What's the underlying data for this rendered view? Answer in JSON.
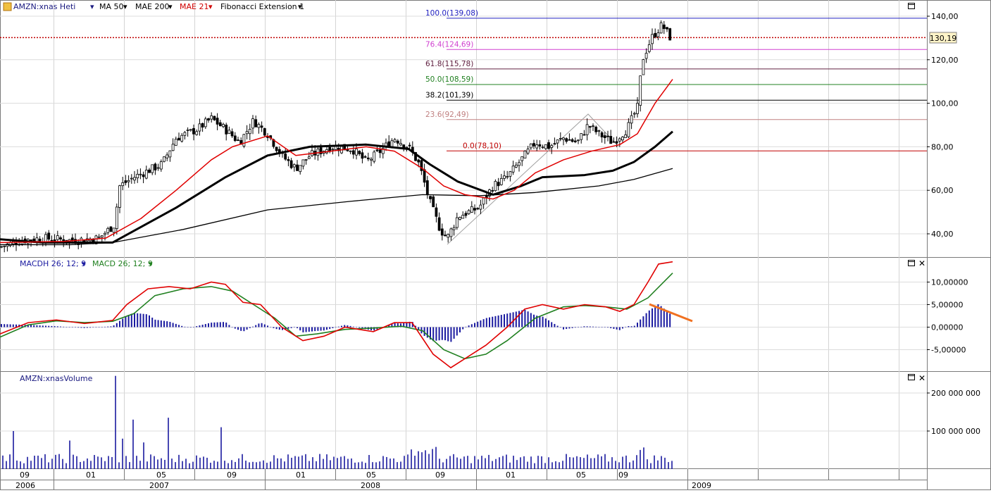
{
  "toolbar": {
    "instrument": "AMZN:xnas Heti",
    "indicators": [
      {
        "label": "MA 50",
        "color": "#000000"
      },
      {
        "label": "MAE 200",
        "color": "#000000"
      },
      {
        "label": "MAE 21",
        "color": "#e00000"
      },
      {
        "label": "Fibonacci Extension 1",
        "color": "#000000"
      }
    ]
  },
  "price_panel": {
    "y_ticks": [
      "140,00",
      "120,00",
      "100,00",
      "80,00",
      "60,00",
      "40,00"
    ],
    "last_price_label": "130,19",
    "last_price": 130.19,
    "fibonacci": [
      {
        "label": "100.0(139,08)",
        "value": 139.08,
        "color": "#2020c0"
      },
      {
        "label": "76.4(124,69)",
        "value": 124.69,
        "color": "#d040d0"
      },
      {
        "label": "61.8(115,78)",
        "value": 115.78,
        "color": "#602040"
      },
      {
        "label": "50.0(108,59)",
        "value": 108.59,
        "color": "#208020"
      },
      {
        "label": "38.2(101,39)",
        "value": 101.39,
        "color": "#000000"
      },
      {
        "label": "23.6(92,49)",
        "value": 92.49,
        "color": "#c08080"
      },
      {
        "label": "0.0(78,10)",
        "value": 78.1,
        "color": "#c00000"
      }
    ]
  },
  "macd_panel": {
    "legend": [
      {
        "label": "MACDH 26; 12; 9",
        "color": "#1a1aa0"
      },
      {
        "label": "MACD 26; 12; 9",
        "color": "#208020"
      }
    ],
    "y_ticks": [
      "10,00000",
      "5,00000",
      "0,00000",
      "-5,00000"
    ]
  },
  "volume_panel": {
    "label": "AMZN:xnasVolume",
    "y_ticks": [
      "200 000 000",
      "100 000 000"
    ]
  },
  "time_axis": {
    "months": [
      "09",
      "01",
      "05",
      "09",
      "01",
      "05",
      "09",
      "01",
      "05",
      "09"
    ],
    "years": [
      "2006",
      "2007",
      "2008",
      "2009"
    ]
  },
  "chart_data": {
    "type": "candlestick",
    "ticker": "AMZN",
    "price_ylim": [
      32,
      146
    ],
    "moving_averages": [
      {
        "name": "MA 50",
        "color": "#000000",
        "points": [
          [
            0,
            37.5
          ],
          [
            60,
            36
          ],
          [
            160,
            36
          ],
          [
            250,
            52
          ],
          [
            320,
            66
          ],
          [
            380,
            76
          ],
          [
            440,
            80
          ],
          [
            520,
            81
          ],
          [
            580,
            79
          ],
          [
            610,
            72
          ],
          [
            650,
            64
          ],
          [
            700,
            58
          ],
          [
            740,
            62
          ],
          [
            770,
            66
          ],
          [
            830,
            67
          ],
          [
            870,
            69
          ],
          [
            900,
            73
          ],
          [
            930,
            80
          ],
          [
            955,
            87
          ]
        ]
      },
      {
        "name": "MAE 200",
        "color": "#000000",
        "points": [
          [
            0,
            35
          ],
          [
            100,
            35
          ],
          [
            160,
            36
          ],
          [
            260,
            42
          ],
          [
            380,
            51
          ],
          [
            500,
            55
          ],
          [
            600,
            58
          ],
          [
            680,
            57.5
          ],
          [
            760,
            59
          ],
          [
            850,
            62
          ],
          [
            900,
            65
          ],
          [
            955,
            70
          ]
        ]
      },
      {
        "name": "MAE 21",
        "color": "#e00000",
        "points": [
          [
            0,
            36
          ],
          [
            90,
            36.5
          ],
          [
            150,
            38
          ],
          [
            200,
            47
          ],
          [
            250,
            60
          ],
          [
            300,
            74
          ],
          [
            330,
            80
          ],
          [
            380,
            85
          ],
          [
            420,
            76
          ],
          [
            470,
            78
          ],
          [
            520,
            80
          ],
          [
            560,
            78
          ],
          [
            600,
            70
          ],
          [
            630,
            62
          ],
          [
            660,
            58
          ],
          [
            700,
            56
          ],
          [
            730,
            60
          ],
          [
            760,
            68
          ],
          [
            800,
            74
          ],
          [
            840,
            78
          ],
          [
            880,
            81
          ],
          [
            905,
            86
          ],
          [
            930,
            100
          ],
          [
            955,
            111
          ]
        ]
      }
    ],
    "candles_close_path": [
      [
        0,
        34
      ],
      [
        30,
        37
      ],
      [
        60,
        38
      ],
      [
        100,
        37
      ],
      [
        140,
        38
      ],
      [
        162,
        44
      ],
      [
        170,
        62
      ],
      [
        190,
        66
      ],
      [
        230,
        72
      ],
      [
        250,
        84
      ],
      [
        280,
        88
      ],
      [
        300,
        93
      ],
      [
        320,
        88
      ],
      [
        340,
        82
      ],
      [
        360,
        92
      ],
      [
        380,
        86
      ],
      [
        400,
        76
      ],
      [
        420,
        70
      ],
      [
        440,
        76
      ],
      [
        470,
        80
      ],
      [
        500,
        79
      ],
      [
        520,
        73
      ],
      [
        540,
        78
      ],
      [
        560,
        84
      ],
      [
        580,
        80
      ],
      [
        595,
        72
      ],
      [
        610,
        55
      ],
      [
        625,
        42
      ],
      [
        635,
        38
      ],
      [
        650,
        48
      ],
      [
        680,
        52
      ],
      [
        700,
        62
      ],
      [
        720,
        66
      ],
      [
        740,
        74
      ],
      [
        760,
        82
      ],
      [
        780,
        80
      ],
      [
        800,
        84
      ],
      [
        820,
        82
      ],
      [
        835,
        90
      ],
      [
        850,
        86
      ],
      [
        870,
        82
      ],
      [
        890,
        88
      ],
      [
        905,
        98
      ],
      [
        912,
        120
      ],
      [
        925,
        130
      ],
      [
        940,
        136
      ],
      [
        952,
        130
      ]
    ],
    "macd": {
      "ylim": [
        -8,
        15
      ]
    },
    "volume": {
      "ylim": [
        0,
        250000000
      ]
    }
  }
}
